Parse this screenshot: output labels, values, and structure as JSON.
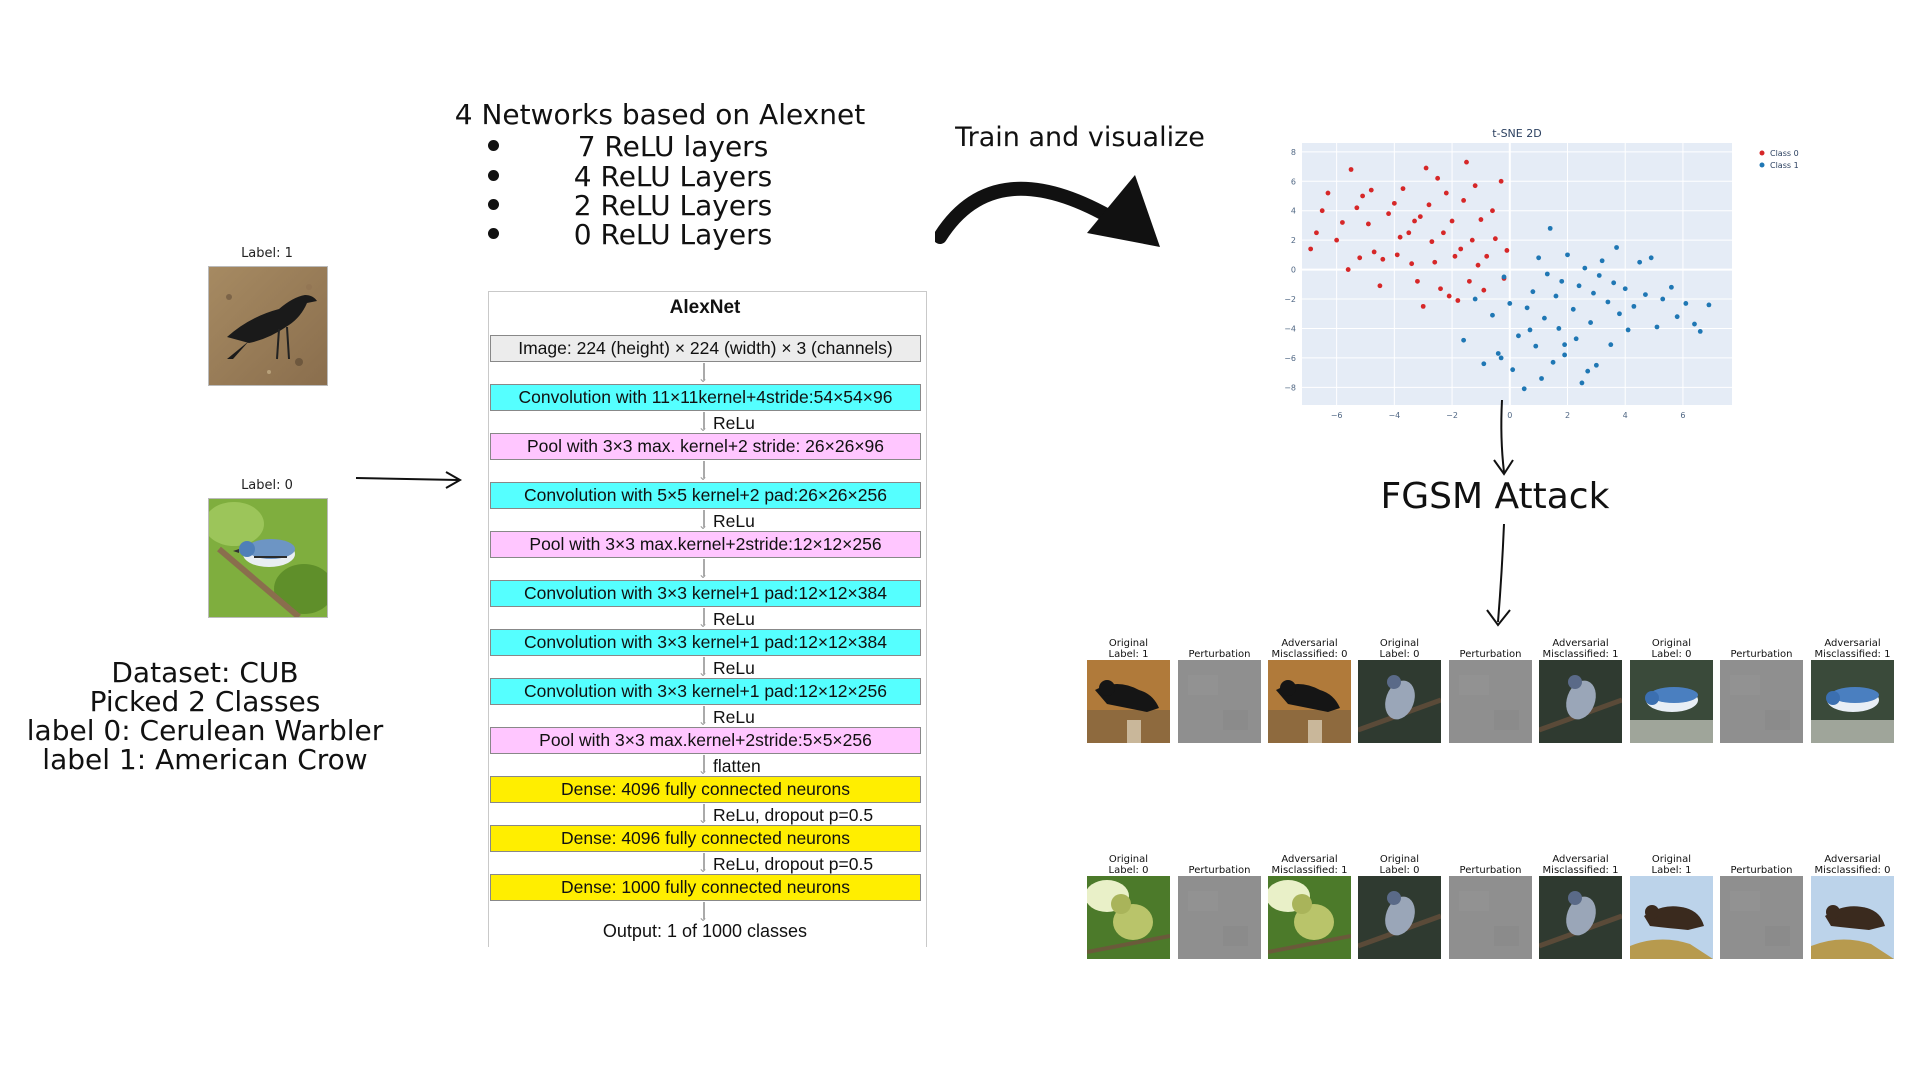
{
  "samples": [
    {
      "label": "Label: 1",
      "species": "crow"
    },
    {
      "label": "Label: 0",
      "species": "warbler"
    }
  ],
  "dataset_text": [
    "Dataset: CUB",
    "Picked 2 Classes",
    "label 0: Cerulean Warbler",
    "label 1: American Crow"
  ],
  "header": {
    "title": "4 Networks based on Alexnet",
    "bullets": [
      "7 ReLU layers",
      "4 ReLU Layers",
      "2 ReLU Layers",
      "0 ReLU Layers"
    ]
  },
  "train_label": "Train and visualize",
  "fgsm_label": "FGSM Attack",
  "alexnet": {
    "title": "AlexNet",
    "blocks": [
      {
        "text": "Image: 224 (height) × 224 (width) × 3 (channels)",
        "color": "gray"
      },
      {
        "text": "Convolution with 11×11kernel+4stride:54×54×96",
        "color": "cyan"
      },
      {
        "text": "Pool with 3×3 max. kernel+2 stride: 26×26×96",
        "color": "pink"
      },
      {
        "text": "Convolution with 5×5 kernel+2 pad:26×26×256",
        "color": "cyan"
      },
      {
        "text": "Pool with 3×3 max.kernel+2stride:12×12×256",
        "color": "pink"
      },
      {
        "text": "Convolution with 3×3 kernel+1 pad:12×12×384",
        "color": "cyan"
      },
      {
        "text": "Convolution with 3×3 kernel+1 pad:12×12×384",
        "color": "cyan"
      },
      {
        "text": "Convolution with 3×3 kernel+1 pad:12×12×256",
        "color": "cyan"
      },
      {
        "text": "Pool with 3×3 max.kernel+2stride:5×5×256",
        "color": "pink"
      },
      {
        "text": "Dense: 4096 fully connected neurons",
        "color": "yellow"
      },
      {
        "text": "Dense: 4096 fully connected neurons",
        "color": "yellow"
      },
      {
        "text": "Dense: 1000 fully connected neurons",
        "color": "yellow"
      }
    ],
    "connectors": [
      "",
      "ReLu",
      "",
      "ReLu",
      "",
      "ReLu",
      "ReLu",
      "ReLu",
      "flatten",
      "ReLu, dropout p=0.5",
      "ReLu, dropout p=0.5",
      ""
    ],
    "output": "Output: 1 of 1000 classes"
  },
  "chart_data": {
    "type": "scatter",
    "title": "t-SNE 2D",
    "xlabel": "",
    "ylabel": "",
    "xlim": [
      -7.2,
      7.7
    ],
    "ylim": [
      -9.2,
      8.6
    ],
    "xticks": [
      -6,
      -4,
      -2,
      0,
      2,
      4,
      6
    ],
    "yticks": [
      -8,
      -6,
      -4,
      -2,
      0,
      2,
      4,
      6,
      8
    ],
    "legend_position": "top-right",
    "series": [
      {
        "name": "Class 0",
        "color": "#d62728",
        "points": [
          [
            -6.9,
            1.4
          ],
          [
            -6.7,
            2.5
          ],
          [
            -6.5,
            4.0
          ],
          [
            -6.3,
            5.2
          ],
          [
            -6.0,
            2.0
          ],
          [
            -5.8,
            3.2
          ],
          [
            -5.6,
            0.0
          ],
          [
            -5.5,
            6.8
          ],
          [
            -5.3,
            4.2
          ],
          [
            -5.1,
            5.0
          ],
          [
            -4.9,
            3.1
          ],
          [
            -4.7,
            1.2
          ],
          [
            -4.5,
            -1.1
          ],
          [
            -4.4,
            0.7
          ],
          [
            -4.2,
            3.8
          ],
          [
            -4.0,
            4.5
          ],
          [
            -3.9,
            1.0
          ],
          [
            -3.7,
            5.5
          ],
          [
            -3.5,
            2.5
          ],
          [
            -3.4,
            0.4
          ],
          [
            -3.2,
            -0.8
          ],
          [
            -3.1,
            3.6
          ],
          [
            -2.9,
            6.9
          ],
          [
            -2.8,
            4.4
          ],
          [
            -2.7,
            1.9
          ],
          [
            -2.6,
            0.5
          ],
          [
            -2.4,
            -1.3
          ],
          [
            -2.3,
            2.5
          ],
          [
            -2.2,
            5.2
          ],
          [
            -2.0,
            3.3
          ],
          [
            -1.9,
            0.9
          ],
          [
            -1.8,
            -2.1
          ],
          [
            -1.7,
            1.4
          ],
          [
            -1.6,
            4.7
          ],
          [
            -1.5,
            7.3
          ],
          [
            -1.4,
            -0.8
          ],
          [
            -1.3,
            2.0
          ],
          [
            -1.1,
            0.3
          ],
          [
            -1.0,
            3.4
          ],
          [
            -0.9,
            -1.4
          ],
          [
            -0.8,
            0.9
          ],
          [
            -0.6,
            4.0
          ],
          [
            -0.5,
            2.1
          ],
          [
            -0.3,
            6.0
          ],
          [
            -0.2,
            -0.6
          ],
          [
            -0.1,
            1.3
          ],
          [
            -3.0,
            -2.5
          ],
          [
            -3.8,
            2.2
          ],
          [
            -5.2,
            0.8
          ],
          [
            -2.1,
            -1.8
          ],
          [
            -4.8,
            5.4
          ],
          [
            -3.3,
            3.3
          ],
          [
            -1.2,
            5.7
          ],
          [
            -2.5,
            6.2
          ]
        ]
      },
      {
        "name": "Class 1",
        "color": "#1f77b4",
        "points": [
          [
            -1.6,
            -4.8
          ],
          [
            -1.2,
            -2.0
          ],
          [
            -0.9,
            -6.4
          ],
          [
            -0.6,
            -3.1
          ],
          [
            -0.4,
            -5.7
          ],
          [
            -0.2,
            -0.5
          ],
          [
            0.0,
            -2.3
          ],
          [
            0.1,
            -6.8
          ],
          [
            0.3,
            -4.5
          ],
          [
            0.5,
            -8.1
          ],
          [
            0.6,
            -2.6
          ],
          [
            0.8,
            -1.5
          ],
          [
            0.9,
            -5.2
          ],
          [
            1.0,
            0.8
          ],
          [
            1.1,
            -7.4
          ],
          [
            1.2,
            -3.3
          ],
          [
            1.3,
            -0.3
          ],
          [
            1.4,
            2.8
          ],
          [
            1.5,
            -6.3
          ],
          [
            1.6,
            -1.8
          ],
          [
            1.7,
            -4.0
          ],
          [
            1.8,
            -0.8
          ],
          [
            1.9,
            -5.8
          ],
          [
            2.0,
            1.0
          ],
          [
            2.2,
            -2.7
          ],
          [
            2.3,
            -4.7
          ],
          [
            2.4,
            -1.1
          ],
          [
            2.5,
            -7.7
          ],
          [
            2.6,
            0.1
          ],
          [
            2.8,
            -3.6
          ],
          [
            2.9,
            -1.6
          ],
          [
            3.0,
            -6.5
          ],
          [
            3.1,
            -0.4
          ],
          [
            3.2,
            0.6
          ],
          [
            3.4,
            -2.2
          ],
          [
            3.5,
            -5.1
          ],
          [
            3.6,
            -0.9
          ],
          [
            3.7,
            1.5
          ],
          [
            3.8,
            -3.0
          ],
          [
            4.0,
            -1.3
          ],
          [
            4.1,
            -4.1
          ],
          [
            4.3,
            -2.5
          ],
          [
            4.5,
            0.5
          ],
          [
            4.7,
            -1.7
          ],
          [
            4.9,
            0.8
          ],
          [
            5.1,
            -3.9
          ],
          [
            5.3,
            -2.0
          ],
          [
            5.6,
            -1.2
          ],
          [
            5.8,
            -3.2
          ],
          [
            6.1,
            -2.3
          ],
          [
            6.4,
            -3.7
          ],
          [
            6.6,
            -4.2
          ],
          [
            6.9,
            -2.4
          ],
          [
            -0.3,
            -6.0
          ],
          [
            0.7,
            -4.1
          ],
          [
            1.9,
            -5.1
          ],
          [
            2.7,
            -6.9
          ]
        ]
      }
    ]
  },
  "fgsm_rows": [
    [
      {
        "title": "Original\nLabel: 1",
        "kind": "crow"
      },
      {
        "title": "Perturbation",
        "kind": "noise"
      },
      {
        "title": "Adversarial\nMisclassified: 0",
        "kind": "crow"
      },
      {
        "title": "Original\nLabel: 0",
        "kind": "warbler"
      },
      {
        "title": "Perturbation",
        "kind": "noise"
      },
      {
        "title": "Adversarial\nMisclassified: 1",
        "kind": "warbler"
      },
      {
        "title": "Original\nLabel: 0",
        "kind": "warbler-blue"
      },
      {
        "title": "Perturbation",
        "kind": "noise"
      },
      {
        "title": "Adversarial\nMisclassified: 1",
        "kind": "warbler-blue"
      }
    ],
    [
      {
        "title": "Original\nLabel: 0",
        "kind": "green-bird"
      },
      {
        "title": "Perturbation",
        "kind": "noise"
      },
      {
        "title": "Adversarial\nMisclassified: 1",
        "kind": "green-bird"
      },
      {
        "title": "Original\nLabel: 0",
        "kind": "warbler"
      },
      {
        "title": "Perturbation",
        "kind": "noise"
      },
      {
        "title": "Adversarial\nMisclassified: 1",
        "kind": "warbler"
      },
      {
        "title": "Original\nLabel: 1",
        "kind": "crow-sky"
      },
      {
        "title": "Perturbation",
        "kind": "noise"
      },
      {
        "title": "Adversarial\nMisclassified: 0",
        "kind": "crow-sky"
      }
    ]
  ]
}
